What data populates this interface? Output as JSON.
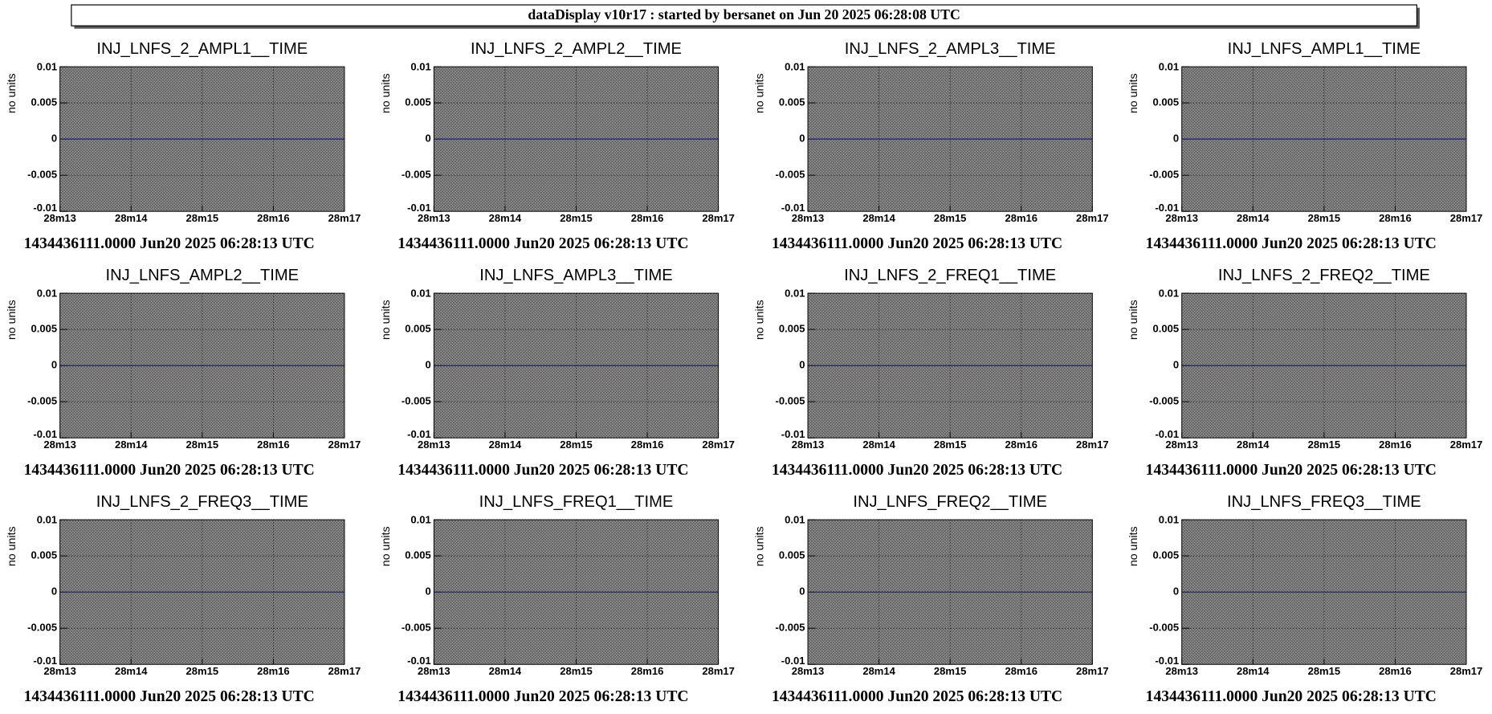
{
  "header": {
    "title": "dataDisplay v10r17 : started by bersanet on Jun 20 2025 06:28:08 UTC"
  },
  "chart_data": [
    {
      "type": "line",
      "title": "INJ_LNFS_2_AMPL1__TIME",
      "y_label": "no units",
      "footer": "1434436111.0000 Jun20 2025 06:28:13 UTC",
      "categories": [
        "28m13",
        "28m14",
        "28m15",
        "28m16",
        "28m17"
      ],
      "values": [
        0,
        0,
        0,
        0,
        0
      ],
      "color": "#1a1a80",
      "ylim": [
        -0.01,
        0.01
      ],
      "yticks": [
        -0.01,
        -0.005,
        0,
        0.005,
        0.01
      ],
      "grid": true
    },
    {
      "type": "line",
      "title": "INJ_LNFS_2_AMPL2__TIME",
      "y_label": "no units",
      "footer": "1434436111.0000 Jun20 2025 06:28:13 UTC",
      "categories": [
        "28m13",
        "28m14",
        "28m15",
        "28m16",
        "28m17"
      ],
      "values": [
        0,
        0,
        0,
        0,
        0
      ],
      "color": "#1a1a80",
      "ylim": [
        -0.01,
        0.01
      ],
      "yticks": [
        -0.01,
        -0.005,
        0,
        0.005,
        0.01
      ],
      "grid": true
    },
    {
      "type": "line",
      "title": "INJ_LNFS_2_AMPL3__TIME",
      "y_label": "no units",
      "footer": "1434436111.0000 Jun20 2025 06:28:13 UTC",
      "categories": [
        "28m13",
        "28m14",
        "28m15",
        "28m16",
        "28m17"
      ],
      "values": [
        0,
        0,
        0,
        0,
        0
      ],
      "color": "#1a1a80",
      "ylim": [
        -0.01,
        0.01
      ],
      "yticks": [
        -0.01,
        -0.005,
        0,
        0.005,
        0.01
      ],
      "grid": true
    },
    {
      "type": "line",
      "title": "INJ_LNFS_AMPL1__TIME",
      "y_label": "no units",
      "footer": "1434436111.0000 Jun20 2025 06:28:13 UTC",
      "categories": [
        "28m13",
        "28m14",
        "28m15",
        "28m16",
        "28m17"
      ],
      "values": [
        0,
        0,
        0,
        0,
        0
      ],
      "color": "#1a1a80",
      "ylim": [
        -0.01,
        0.01
      ],
      "yticks": [
        -0.01,
        -0.005,
        0,
        0.005,
        0.01
      ],
      "grid": true
    },
    {
      "type": "line",
      "title": "INJ_LNFS_AMPL2__TIME",
      "y_label": "no units",
      "footer": "1434436111.0000 Jun20 2025 06:28:13 UTC",
      "categories": [
        "28m13",
        "28m14",
        "28m15",
        "28m16",
        "28m17"
      ],
      "values": [
        0,
        0,
        0,
        0,
        0
      ],
      "color": "#1a1a80",
      "ylim": [
        -0.01,
        0.01
      ],
      "yticks": [
        -0.01,
        -0.005,
        0,
        0.005,
        0.01
      ],
      "grid": true
    },
    {
      "type": "line",
      "title": "INJ_LNFS_AMPL3__TIME",
      "y_label": "no units",
      "footer": "1434436111.0000 Jun20 2025 06:28:13 UTC",
      "categories": [
        "28m13",
        "28m14",
        "28m15",
        "28m16",
        "28m17"
      ],
      "values": [
        0,
        0,
        0,
        0,
        0
      ],
      "color": "#1a1a80",
      "ylim": [
        -0.01,
        0.01
      ],
      "yticks": [
        -0.01,
        -0.005,
        0,
        0.005,
        0.01
      ],
      "grid": true
    },
    {
      "type": "line",
      "title": "INJ_LNFS_2_FREQ1__TIME",
      "y_label": "no units",
      "footer": "1434436111.0000 Jun20 2025 06:28:13 UTC",
      "categories": [
        "28m13",
        "28m14",
        "28m15",
        "28m16",
        "28m17"
      ],
      "values": [
        0,
        0,
        0,
        0,
        0
      ],
      "color": "#1a1a80",
      "ylim": [
        -0.01,
        0.01
      ],
      "yticks": [
        -0.01,
        -0.005,
        0,
        0.005,
        0.01
      ],
      "grid": true
    },
    {
      "type": "line",
      "title": "INJ_LNFS_2_FREQ2__TIME",
      "y_label": "no units",
      "footer": "1434436111.0000 Jun20 2025 06:28:13 UTC",
      "categories": [
        "28m13",
        "28m14",
        "28m15",
        "28m16",
        "28m17"
      ],
      "values": [
        0,
        0,
        0,
        0,
        0
      ],
      "color": "#1a1a80",
      "ylim": [
        -0.01,
        0.01
      ],
      "yticks": [
        -0.01,
        -0.005,
        0,
        0.005,
        0.01
      ],
      "grid": true
    },
    {
      "type": "line",
      "title": "INJ_LNFS_2_FREQ3__TIME",
      "y_label": "no units",
      "footer": "1434436111.0000 Jun20 2025 06:28:13 UTC",
      "categories": [
        "28m13",
        "28m14",
        "28m15",
        "28m16",
        "28m17"
      ],
      "values": [
        0,
        0,
        0,
        0,
        0
      ],
      "color": "#1a1a80",
      "ylim": [
        -0.01,
        0.01
      ],
      "yticks": [
        -0.01,
        -0.005,
        0,
        0.005,
        0.01
      ],
      "grid": true
    },
    {
      "type": "line",
      "title": "INJ_LNFS_FREQ1__TIME",
      "y_label": "no units",
      "footer": "1434436111.0000 Jun20 2025 06:28:13 UTC",
      "categories": [
        "28m13",
        "28m14",
        "28m15",
        "28m16",
        "28m17"
      ],
      "values": [
        0,
        0,
        0,
        0,
        0
      ],
      "color": "#1a1a80",
      "ylim": [
        -0.01,
        0.01
      ],
      "yticks": [
        -0.01,
        -0.005,
        0,
        0.005,
        0.01
      ],
      "grid": true
    },
    {
      "type": "line",
      "title": "INJ_LNFS_FREQ2__TIME",
      "y_label": "no units",
      "footer": "1434436111.0000 Jun20 2025 06:28:13 UTC",
      "categories": [
        "28m13",
        "28m14",
        "28m15",
        "28m16",
        "28m17"
      ],
      "values": [
        0,
        0,
        0,
        0,
        0
      ],
      "color": "#1a1a80",
      "ylim": [
        -0.01,
        0.01
      ],
      "yticks": [
        -0.01,
        -0.005,
        0,
        0.005,
        0.01
      ],
      "grid": true
    },
    {
      "type": "line",
      "title": "INJ_LNFS_FREQ3__TIME",
      "y_label": "no units",
      "footer": "1434436111.0000 Jun20 2025 06:28:13 UTC",
      "categories": [
        "28m13",
        "28m14",
        "28m15",
        "28m16",
        "28m17"
      ],
      "values": [
        0,
        0,
        0,
        0,
        0
      ],
      "color": "#1a1a80",
      "ylim": [
        -0.01,
        0.01
      ],
      "yticks": [
        -0.01,
        -0.005,
        0,
        0.005,
        0.01
      ],
      "grid": true
    }
  ]
}
